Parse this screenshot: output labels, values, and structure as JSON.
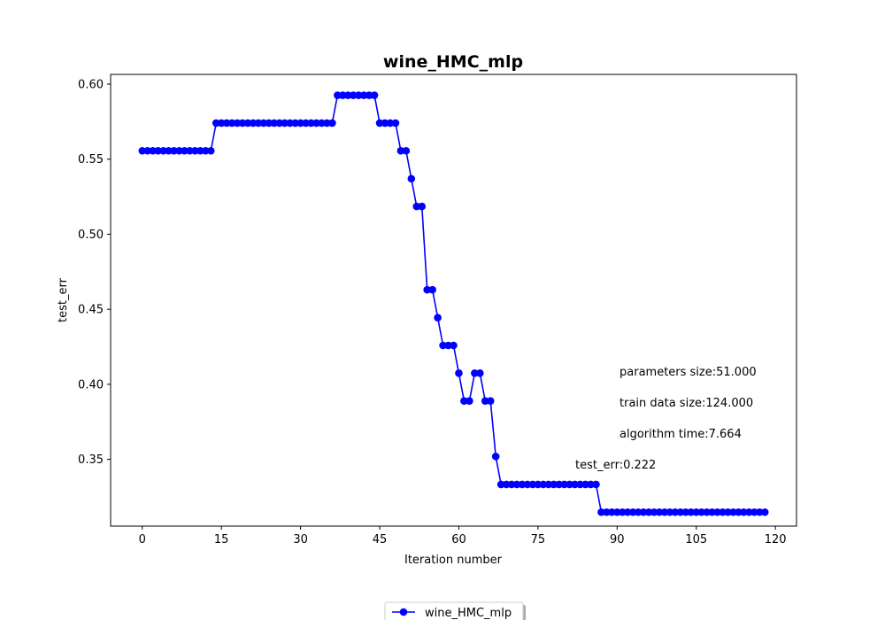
{
  "chart_data": {
    "type": "line",
    "title": "wine_HMC_mlp",
    "xlabel": "Iteration number",
    "ylabel": "test_err",
    "xlim": [
      -6,
      124
    ],
    "ylim": [
      0.3055,
      0.6065
    ],
    "xticks": [
      0,
      15,
      30,
      45,
      60,
      75,
      90,
      105,
      120
    ],
    "yticks": [
      0.35,
      0.4,
      0.45,
      0.5,
      0.55,
      0.6
    ],
    "ytick_labels": [
      "0.35",
      "0.40",
      "0.45",
      "0.50",
      "0.55",
      "0.60"
    ],
    "grid": false,
    "legend_position": "bottom-center",
    "series": [
      {
        "name": "wine_HMC_mlp",
        "color": "#0000ff",
        "marker": "circle",
        "x": [
          0,
          1,
          2,
          3,
          4,
          5,
          6,
          7,
          8,
          9,
          10,
          11,
          12,
          13,
          14,
          15,
          16,
          17,
          18,
          19,
          20,
          21,
          22,
          23,
          24,
          25,
          26,
          27,
          28,
          29,
          30,
          31,
          32,
          33,
          34,
          35,
          36,
          37,
          38,
          39,
          40,
          41,
          42,
          43,
          44,
          45,
          46,
          47,
          48,
          49,
          50,
          51,
          52,
          53,
          54,
          55,
          56,
          57,
          58,
          59,
          60,
          61,
          62,
          63,
          64,
          65,
          66,
          67,
          68,
          69,
          70,
          71,
          72,
          73,
          74,
          75,
          76,
          77,
          78,
          79,
          80,
          81,
          82,
          83,
          84,
          85,
          86,
          87,
          88,
          89,
          90,
          91,
          92,
          93,
          94,
          95,
          96,
          97,
          98,
          99,
          100,
          101,
          102,
          103,
          104,
          105,
          106,
          107,
          108,
          109,
          110,
          111,
          112,
          113,
          114,
          115,
          116,
          117,
          118
        ],
        "y": [
          0.5556,
          0.5556,
          0.5556,
          0.5556,
          0.5556,
          0.5556,
          0.5556,
          0.5556,
          0.5556,
          0.5556,
          0.5556,
          0.5556,
          0.5556,
          0.5556,
          0.5741,
          0.5741,
          0.5741,
          0.5741,
          0.5741,
          0.5741,
          0.5741,
          0.5741,
          0.5741,
          0.5741,
          0.5741,
          0.5741,
          0.5741,
          0.5741,
          0.5741,
          0.5741,
          0.5741,
          0.5741,
          0.5741,
          0.5741,
          0.5741,
          0.5741,
          0.5741,
          0.5926,
          0.5926,
          0.5926,
          0.5926,
          0.5926,
          0.5926,
          0.5926,
          0.5926,
          0.5741,
          0.5741,
          0.5741,
          0.5741,
          0.5556,
          0.5556,
          0.537,
          0.5185,
          0.5185,
          0.463,
          0.463,
          0.4444,
          0.4259,
          0.4259,
          0.4259,
          0.4074,
          0.3889,
          0.3889,
          0.4074,
          0.4074,
          0.3889,
          0.3889,
          0.3519,
          0.3333,
          0.3333,
          0.3333,
          0.3333,
          0.3333,
          0.3333,
          0.3333,
          0.3333,
          0.3333,
          0.3333,
          0.3333,
          0.3333,
          0.3333,
          0.3333,
          0.3333,
          0.3333,
          0.3333,
          0.3333,
          0.3333,
          0.3148,
          0.3148,
          0.3148,
          0.3148,
          0.3148,
          0.3148,
          0.3148,
          0.3148,
          0.3148,
          0.3148,
          0.3148,
          0.3148,
          0.3148,
          0.3148,
          0.3148,
          0.3148,
          0.3148,
          0.3148,
          0.3148,
          0.3148,
          0.3148,
          0.3148,
          0.3148,
          0.3148,
          0.3148,
          0.3148,
          0.3148,
          0.3148,
          0.3148,
          0.3148,
          0.3148,
          0.3148
        ]
      }
    ],
    "annotations": [
      "parameters size:51.000",
      "train data size:124.000",
      "algorithm time:7.664",
      "test_err:0.222"
    ]
  }
}
